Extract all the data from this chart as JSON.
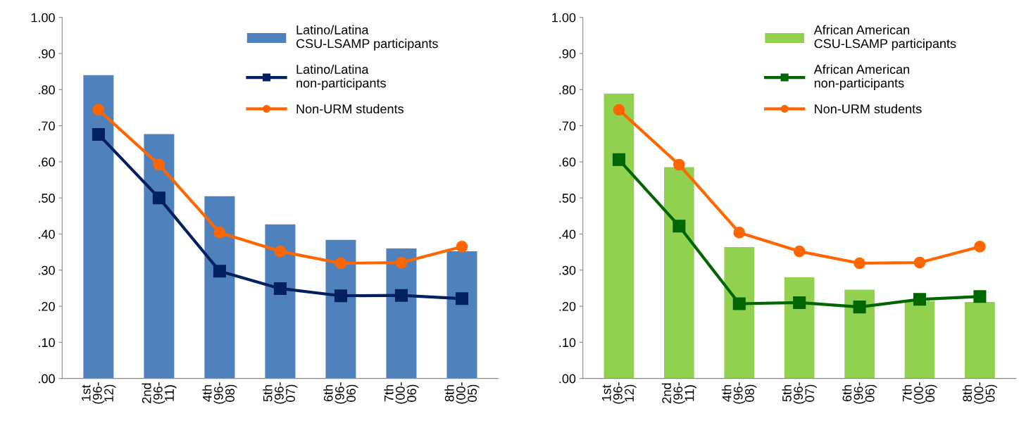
{
  "chart_data": [
    {
      "type": "bar",
      "categories": [
        "1st\n(96-\n12)",
        "2nd\n(96-\n11)",
        "4th\n(96-\n08)",
        "5th\n(96-\n07)",
        "6th\n(96-\n06)",
        "7th\n(00-\n06)",
        "8th\n(00-\n05)"
      ],
      "series": [
        {
          "name": "Latino/Latina\nCSU-LSAMP participants",
          "color": "#4f81bd",
          "values": [
            0.84,
            0.677,
            0.505,
            0.427,
            0.384,
            0.36,
            0.352
          ]
        },
        {
          "name": "Latino/Latina\nnon-participants",
          "type": "line",
          "marker": "square",
          "color": "#002060",
          "values": [
            0.676,
            0.5,
            0.297,
            0.249,
            0.229,
            0.23,
            0.221
          ]
        },
        {
          "name": "Non-URM students",
          "type": "line",
          "marker": "circle",
          "color": "#ff6600",
          "values": [
            0.744,
            0.592,
            0.404,
            0.352,
            0.319,
            0.321,
            0.365
          ]
        }
      ],
      "ylim": [
        0,
        1.0
      ],
      "yticks": [
        {
          "value": 0,
          "label": ".00"
        },
        {
          "value": 0.1,
          "label": ".10"
        },
        {
          "value": 0.2,
          "label": ".20"
        },
        {
          "value": 0.3,
          "label": ".30"
        },
        {
          "value": 0.4,
          "label": ".40"
        },
        {
          "value": 0.5,
          "label": ".50"
        },
        {
          "value": 0.6,
          "label": ".60"
        },
        {
          "value": 0.7,
          "label": ".70"
        },
        {
          "value": 0.8,
          "label": ".80"
        },
        {
          "value": 0.9,
          "label": ".90"
        },
        {
          "value": 1.0,
          "label": "1.00"
        }
      ],
      "legend": "top right",
      "grid": false
    },
    {
      "type": "bar",
      "categories": [
        "1st\n(96-\n12)",
        "2nd\n(96-\n11)",
        "4th\n(96-\n08)",
        "5th\n(96-\n07)",
        "6th\n(96-\n06)",
        "7th\n(00-\n06)",
        "8th\n(00-\n05)"
      ],
      "series": [
        {
          "name": "African American\nCSU-LSAMP participants",
          "color": "#92d050",
          "values": [
            0.789,
            0.585,
            0.364,
            0.28,
            0.246,
            0.214,
            0.212
          ]
        },
        {
          "name": "African American\nnon-participants",
          "type": "line",
          "marker": "square",
          "color": "#006600",
          "values": [
            0.606,
            0.422,
            0.207,
            0.21,
            0.198,
            0.219,
            0.227
          ]
        },
        {
          "name": "Non-URM students",
          "type": "line",
          "marker": "circle",
          "color": "#ff6600",
          "values": [
            0.744,
            0.592,
            0.404,
            0.352,
            0.319,
            0.321,
            0.365
          ]
        }
      ],
      "ylim": [
        0,
        1.0
      ],
      "yticks": [
        {
          "value": 0,
          "label": ".00"
        },
        {
          "value": 0.1,
          "label": ".10"
        },
        {
          "value": 0.2,
          "label": ".20"
        },
        {
          "value": 0.3,
          "label": ".30"
        },
        {
          "value": 0.4,
          "label": ".40"
        },
        {
          "value": 0.5,
          "label": ".50"
        },
        {
          "value": 0.6,
          "label": ".60"
        },
        {
          "value": 0.7,
          "label": ".70"
        },
        {
          "value": 0.8,
          "label": ".80"
        },
        {
          "value": 0.9,
          "label": ".90"
        },
        {
          "value": 1.0,
          "label": "1.00"
        }
      ],
      "legend": "top right",
      "grid": false
    }
  ]
}
